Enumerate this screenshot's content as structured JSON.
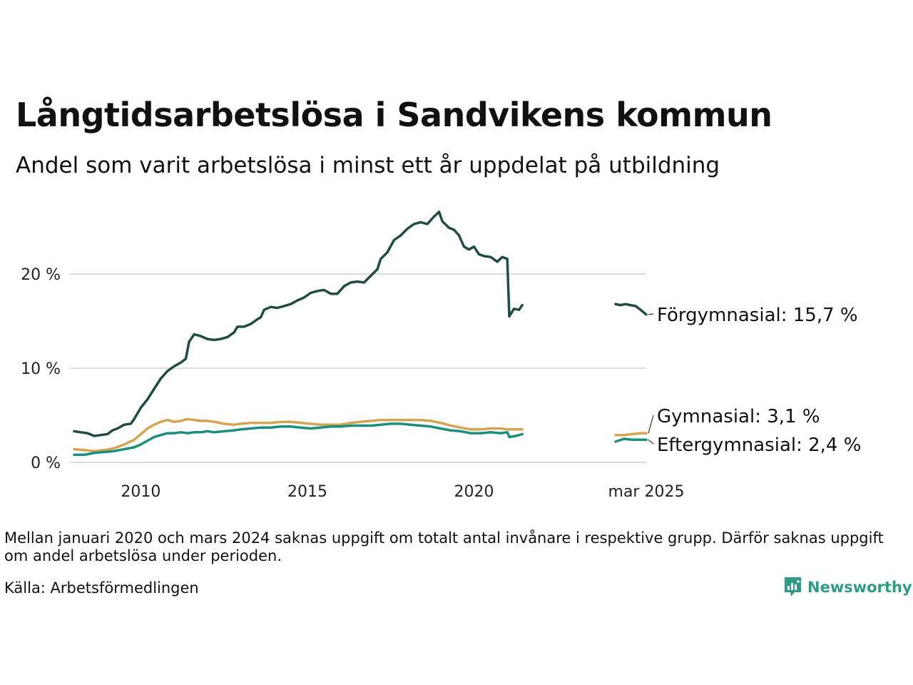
{
  "title": "Långtidsarbetslösa i Sandvikens kommun",
  "subtitle": "Andel som varit arbetslösa i minst ett år uppdelat på utbildning",
  "note": "Mellan januari 2020 och mars 2024 saknas uppgift om totalt antal invånare i respektive grupp. Därför saknas uppgift om andel arbetslösa under perioden.",
  "source": "Källa: Arbetsförmedlingen",
  "brand": {
    "name": "Newsworthy",
    "icon": "newsworthy-logo-icon",
    "color": "#2f9c86"
  },
  "chart_data": {
    "type": "line",
    "title": "Långtidsarbetslösa i Sandvikens kommun",
    "subtitle": "Andel som varit arbetslösa i minst ett år uppdelat på utbildning",
    "xlabel": "",
    "ylabel": "",
    "x_unit": "year",
    "xlim": [
      2008.0,
      2025.2
    ],
    "ylim": [
      0,
      27
    ],
    "y_ticks": [
      0,
      10,
      20
    ],
    "y_tick_labels": [
      "0 %",
      "10 %",
      "20 %"
    ],
    "x_ticks": [
      2010,
      2015,
      2020,
      2025.17
    ],
    "x_tick_labels": [
      "2010",
      "2015",
      "2020",
      "mar 2025"
    ],
    "grid": true,
    "legend": "direct labels at right end of lines",
    "series": [
      {
        "name": "Förgymnasial",
        "end_label": "Förgymnasial: 15,7 %",
        "color": "#1f4d44",
        "segments": [
          [
            [
              2008.0,
              3.3
            ],
            [
              2008.2,
              3.2
            ],
            [
              2008.4,
              3.1
            ],
            [
              2008.6,
              2.8
            ],
            [
              2008.8,
              2.9
            ],
            [
              2009.0,
              3.0
            ],
            [
              2009.15,
              3.4
            ],
            [
              2009.3,
              3.6
            ],
            [
              2009.5,
              4.0
            ],
            [
              2009.7,
              4.1
            ],
            [
              2009.8,
              4.6
            ],
            [
              2010.0,
              5.8
            ],
            [
              2010.2,
              6.7
            ],
            [
              2010.4,
              7.8
            ],
            [
              2010.6,
              8.9
            ],
            [
              2010.8,
              9.7
            ],
            [
              2011.0,
              10.2
            ],
            [
              2011.2,
              10.6
            ],
            [
              2011.35,
              11.0
            ],
            [
              2011.45,
              12.8
            ],
            [
              2011.6,
              13.6
            ],
            [
              2011.8,
              13.4
            ],
            [
              2012.0,
              13.1
            ],
            [
              2012.2,
              13.0
            ],
            [
              2012.4,
              13.1
            ],
            [
              2012.6,
              13.3
            ],
            [
              2012.8,
              13.8
            ],
            [
              2012.9,
              14.4
            ],
            [
              2013.1,
              14.4
            ],
            [
              2013.3,
              14.7
            ],
            [
              2013.5,
              15.2
            ],
            [
              2013.6,
              15.4
            ],
            [
              2013.7,
              16.2
            ],
            [
              2013.9,
              16.5
            ],
            [
              2014.1,
              16.4
            ],
            [
              2014.3,
              16.6
            ],
            [
              2014.5,
              16.8
            ],
            [
              2014.7,
              17.2
            ],
            [
              2014.9,
              17.5
            ],
            [
              2015.1,
              18.0
            ],
            [
              2015.3,
              18.2
            ],
            [
              2015.5,
              18.3
            ],
            [
              2015.7,
              17.9
            ],
            [
              2015.9,
              17.9
            ],
            [
              2016.1,
              18.7
            ],
            [
              2016.3,
              19.1
            ],
            [
              2016.5,
              19.2
            ],
            [
              2016.7,
              19.1
            ],
            [
              2016.9,
              19.8
            ],
            [
              2017.1,
              20.5
            ],
            [
              2017.2,
              21.6
            ],
            [
              2017.4,
              22.3
            ],
            [
              2017.6,
              23.6
            ],
            [
              2017.8,
              24.1
            ],
            [
              2018.0,
              24.8
            ],
            [
              2018.2,
              25.3
            ],
            [
              2018.4,
              25.5
            ],
            [
              2018.6,
              25.3
            ],
            [
              2018.8,
              26.1
            ],
            [
              2018.95,
              26.6
            ],
            [
              2019.05,
              25.6
            ],
            [
              2019.25,
              24.9
            ],
            [
              2019.4,
              24.7
            ],
            [
              2019.55,
              24.1
            ],
            [
              2019.7,
              22.9
            ],
            [
              2019.85,
              22.6
            ],
            [
              2020.0,
              22.9
            ],
            [
              2020.15,
              22.1
            ],
            [
              2020.3,
              21.9
            ],
            [
              2020.5,
              21.8
            ],
            [
              2020.7,
              21.3
            ],
            [
              2020.85,
              21.8
            ],
            [
              2021.0,
              21.6
            ],
            [
              2021.06,
              15.5
            ],
            [
              2021.2,
              16.3
            ],
            [
              2021.35,
              16.2
            ],
            [
              2021.45,
              16.7
            ]
          ],
          [
            [
              2024.25,
              16.8
            ],
            [
              2024.4,
              16.7
            ],
            [
              2024.55,
              16.8
            ],
            [
              2024.7,
              16.7
            ],
            [
              2024.85,
              16.6
            ],
            [
              2025.0,
              16.2
            ],
            [
              2025.17,
              15.7
            ]
          ]
        ]
      },
      {
        "name": "Gymnasial",
        "end_label": "Gymnasial:  3,1 %",
        "color": "#d4a451",
        "segments": [
          [
            [
              2008.0,
              1.4
            ],
            [
              2008.3,
              1.3
            ],
            [
              2008.6,
              1.2
            ],
            [
              2008.9,
              1.3
            ],
            [
              2009.2,
              1.5
            ],
            [
              2009.5,
              1.9
            ],
            [
              2009.8,
              2.4
            ],
            [
              2010.0,
              3.0
            ],
            [
              2010.2,
              3.6
            ],
            [
              2010.4,
              4.0
            ],
            [
              2010.6,
              4.3
            ],
            [
              2010.8,
              4.5
            ],
            [
              2011.0,
              4.3
            ],
            [
              2011.2,
              4.4
            ],
            [
              2011.4,
              4.6
            ],
            [
              2011.6,
              4.5
            ],
            [
              2011.8,
              4.4
            ],
            [
              2012.0,
              4.4
            ],
            [
              2012.2,
              4.3
            ],
            [
              2012.5,
              4.1
            ],
            [
              2012.8,
              4.0
            ],
            [
              2013.0,
              4.1
            ],
            [
              2013.3,
              4.2
            ],
            [
              2013.6,
              4.2
            ],
            [
              2013.9,
              4.2
            ],
            [
              2014.2,
              4.3
            ],
            [
              2014.5,
              4.3
            ],
            [
              2014.8,
              4.2
            ],
            [
              2015.1,
              4.1
            ],
            [
              2015.4,
              4.0
            ],
            [
              2015.7,
              4.0
            ],
            [
              2016.0,
              4.0
            ],
            [
              2016.3,
              4.2
            ],
            [
              2016.6,
              4.3
            ],
            [
              2016.9,
              4.4
            ],
            [
              2017.2,
              4.5
            ],
            [
              2017.5,
              4.5
            ],
            [
              2017.8,
              4.5
            ],
            [
              2018.1,
              4.5
            ],
            [
              2018.4,
              4.5
            ],
            [
              2018.7,
              4.4
            ],
            [
              2019.0,
              4.2
            ],
            [
              2019.3,
              3.9
            ],
            [
              2019.6,
              3.7
            ],
            [
              2019.9,
              3.5
            ],
            [
              2020.2,
              3.5
            ],
            [
              2020.5,
              3.6
            ],
            [
              2020.8,
              3.6
            ],
            [
              2021.0,
              3.5
            ],
            [
              2021.2,
              3.5
            ],
            [
              2021.45,
              3.5
            ]
          ],
          [
            [
              2024.25,
              2.9
            ],
            [
              2024.5,
              2.9
            ],
            [
              2024.75,
              3.0
            ],
            [
              2025.0,
              3.1
            ],
            [
              2025.17,
              3.1
            ]
          ]
        ]
      },
      {
        "name": "Eftergymnasial",
        "end_label": "Eftergymnasial:  2,4 %",
        "color": "#1c8f7c",
        "segments": [
          [
            [
              2008.0,
              0.8
            ],
            [
              2008.3,
              0.8
            ],
            [
              2008.6,
              1.0
            ],
            [
              2008.9,
              1.1
            ],
            [
              2009.2,
              1.2
            ],
            [
              2009.5,
              1.4
            ],
            [
              2009.8,
              1.6
            ],
            [
              2010.0,
              1.9
            ],
            [
              2010.2,
              2.3
            ],
            [
              2010.4,
              2.7
            ],
            [
              2010.6,
              2.9
            ],
            [
              2010.8,
              3.1
            ],
            [
              2011.0,
              3.1
            ],
            [
              2011.2,
              3.2
            ],
            [
              2011.4,
              3.1
            ],
            [
              2011.6,
              3.2
            ],
            [
              2011.8,
              3.2
            ],
            [
              2012.0,
              3.3
            ],
            [
              2012.2,
              3.2
            ],
            [
              2012.5,
              3.3
            ],
            [
              2012.8,
              3.4
            ],
            [
              2013.0,
              3.5
            ],
            [
              2013.3,
              3.6
            ],
            [
              2013.6,
              3.7
            ],
            [
              2013.9,
              3.7
            ],
            [
              2014.2,
              3.8
            ],
            [
              2014.5,
              3.8
            ],
            [
              2014.8,
              3.7
            ],
            [
              2015.1,
              3.6
            ],
            [
              2015.4,
              3.7
            ],
            [
              2015.7,
              3.8
            ],
            [
              2016.0,
              3.8
            ],
            [
              2016.3,
              3.9
            ],
            [
              2016.6,
              3.9
            ],
            [
              2016.9,
              3.9
            ],
            [
              2017.2,
              4.0
            ],
            [
              2017.5,
              4.1
            ],
            [
              2017.8,
              4.1
            ],
            [
              2018.1,
              4.0
            ],
            [
              2018.4,
              3.9
            ],
            [
              2018.7,
              3.8
            ],
            [
              2019.0,
              3.6
            ],
            [
              2019.3,
              3.4
            ],
            [
              2019.6,
              3.3
            ],
            [
              2019.9,
              3.1
            ],
            [
              2020.2,
              3.1
            ],
            [
              2020.5,
              3.2
            ],
            [
              2020.8,
              3.1
            ],
            [
              2021.0,
              3.2
            ],
            [
              2021.06,
              2.7
            ],
            [
              2021.25,
              2.8
            ],
            [
              2021.45,
              3.0
            ]
          ],
          [
            [
              2024.25,
              2.2
            ],
            [
              2024.5,
              2.5
            ],
            [
              2024.75,
              2.4
            ],
            [
              2025.0,
              2.4
            ],
            [
              2025.17,
              2.4
            ]
          ]
        ]
      }
    ]
  }
}
